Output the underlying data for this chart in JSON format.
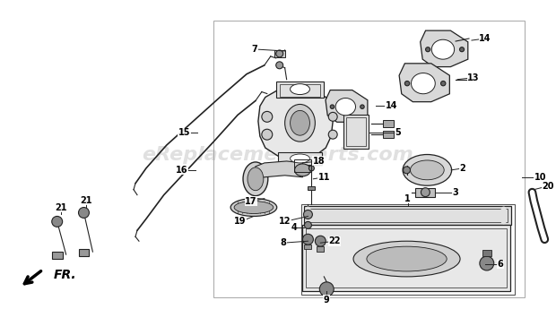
{
  "bg_color": "#ffffff",
  "watermark": "eReplacementParts.com",
  "watermark_color": "#bbbbbb",
  "watermark_alpha": 0.45,
  "fr_label": "FR.",
  "label_fontsize": 7.0,
  "diagram_line_color": "#222222"
}
